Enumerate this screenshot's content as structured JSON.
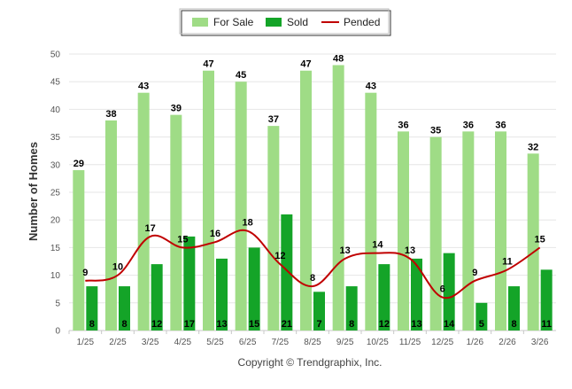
{
  "chart_data": {
    "type": "bar",
    "categories": [
      "1/25",
      "2/25",
      "3/25",
      "4/25",
      "5/25",
      "6/25",
      "7/25",
      "8/25",
      "9/25",
      "10/25",
      "11/25",
      "12/25",
      "1/26",
      "2/26",
      "3/26"
    ],
    "series": [
      {
        "name": "For Sale",
        "kind": "bar",
        "color": "#9fdc86",
        "values": [
          29,
          38,
          43,
          39,
          47,
          45,
          37,
          47,
          48,
          43,
          36,
          35,
          36,
          36,
          32
        ]
      },
      {
        "name": "Sold",
        "kind": "bar",
        "color": "#14a428",
        "values": [
          8,
          8,
          12,
          17,
          13,
          15,
          21,
          7,
          8,
          12,
          13,
          14,
          5,
          8,
          11
        ]
      },
      {
        "name": "Pended",
        "kind": "line",
        "color": "#c00000",
        "values": [
          9,
          10,
          17,
          15,
          16,
          18,
          12,
          8,
          13,
          14,
          13,
          6,
          9,
          11,
          15
        ]
      }
    ],
    "xlabel": "",
    "ylabel": "Number of Homes",
    "ylim": [
      0,
      50
    ],
    "yticks": [
      0,
      5,
      10,
      15,
      20,
      25,
      30,
      35,
      40,
      45,
      50
    ],
    "grid": true,
    "legend_position": "top-center",
    "credit": "Copyright © Trendgraphix, Inc."
  }
}
